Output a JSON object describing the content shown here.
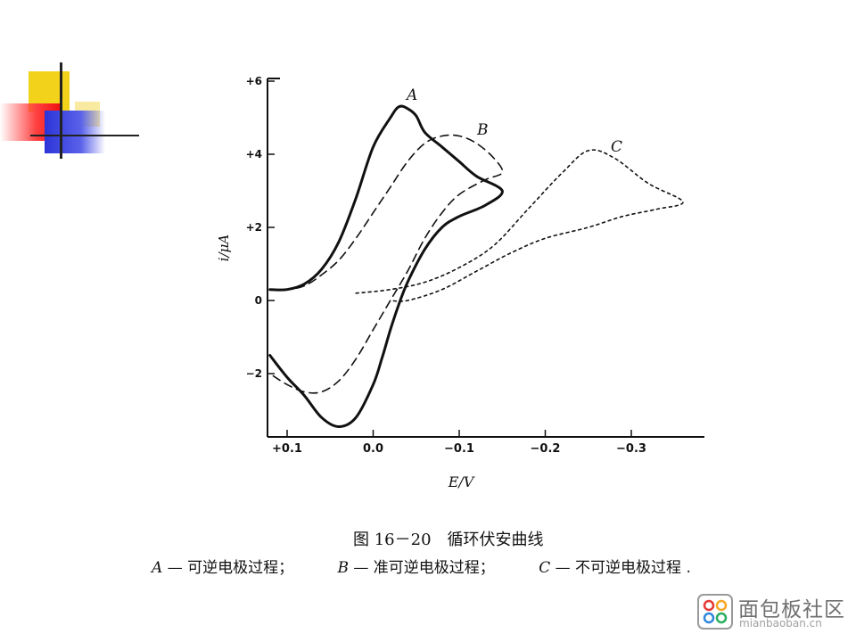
{
  "slide": {
    "decoration": {
      "colors": {
        "yellow": "#f3d21c",
        "red": "#f01010",
        "blue": "#2c34d8",
        "line": "#222222"
      }
    }
  },
  "chart_data": {
    "type": "line",
    "x_axis_reversed": true,
    "xlabel": "E/V",
    "ylabel": "i/μA",
    "xlim": [
      0.12,
      -0.385
    ],
    "ylim": [
      -3.5,
      6.2
    ],
    "x_ticks": [
      {
        "value": 0.1,
        "label": "+0.1"
      },
      {
        "value": 0.0,
        "label": "0.0"
      },
      {
        "value": -0.1,
        "label": "−0.1"
      },
      {
        "value": -0.2,
        "label": "−0.2"
      },
      {
        "value": -0.3,
        "label": "−0.3"
      }
    ],
    "y_ticks": [
      {
        "value": 6,
        "label": "+6"
      },
      {
        "value": 4,
        "label": "+4"
      },
      {
        "value": 2,
        "label": "+2"
      },
      {
        "value": 0,
        "label": "0"
      },
      {
        "value": -2,
        "label": "−2"
      }
    ],
    "grid": false,
    "series": [
      {
        "name": "A",
        "style": "solid",
        "x": [
          0.12,
          0.1,
          0.08,
          0.06,
          0.04,
          0.02,
          0.0,
          -0.02,
          -0.03,
          -0.04,
          -0.05,
          -0.06,
          -0.08,
          -0.1,
          -0.12,
          -0.15,
          -0.13,
          -0.1,
          -0.08,
          -0.06,
          -0.04,
          -0.03,
          -0.02,
          -0.01,
          0.0,
          0.02,
          0.04,
          0.06,
          0.08,
          0.1,
          0.12
        ],
        "y": [
          0.3,
          0.3,
          0.45,
          0.85,
          1.6,
          2.8,
          4.2,
          5.0,
          5.3,
          5.25,
          5.05,
          4.6,
          4.2,
          3.8,
          3.4,
          3.0,
          2.6,
          2.3,
          2.0,
          1.4,
          0.5,
          -0.1,
          -0.8,
          -1.6,
          -2.3,
          -3.2,
          -3.45,
          -3.2,
          -2.6,
          -2.1,
          -1.5
        ]
      },
      {
        "name": "B",
        "style": "dashed",
        "x": [
          0.12,
          0.1,
          0.08,
          0.06,
          0.04,
          0.02,
          0.0,
          -0.02,
          -0.04,
          -0.06,
          -0.08,
          -0.1,
          -0.12,
          -0.14,
          -0.15,
          -0.13,
          -0.1,
          -0.08,
          -0.06,
          -0.04,
          -0.02,
          0.0,
          0.02,
          0.04,
          0.06,
          0.08,
          0.1,
          0.12
        ],
        "y": [
          0.3,
          0.3,
          0.4,
          0.7,
          1.1,
          1.7,
          2.4,
          3.1,
          3.8,
          4.3,
          4.5,
          4.5,
          4.3,
          3.9,
          3.5,
          3.3,
          2.9,
          2.4,
          1.7,
          0.8,
          0.0,
          -0.8,
          -1.6,
          -2.2,
          -2.5,
          -2.5,
          -2.3,
          -2.0
        ]
      },
      {
        "name": "C",
        "style": "dotted",
        "x": [
          0.02,
          -0.02,
          -0.06,
          -0.1,
          -0.14,
          -0.18,
          -0.22,
          -0.25,
          -0.28,
          -0.32,
          -0.36,
          -0.33,
          -0.29,
          -0.25,
          -0.2,
          -0.16,
          -0.12,
          -0.08,
          -0.04,
          -0.02
        ],
        "y": [
          0.2,
          0.3,
          0.5,
          0.9,
          1.5,
          2.5,
          3.5,
          4.1,
          3.9,
          3.2,
          2.7,
          2.5,
          2.3,
          2.0,
          1.7,
          1.3,
          0.8,
          0.3,
          0.0,
          0.0
        ]
      }
    ],
    "annotations": [
      "A",
      "B",
      "C"
    ]
  },
  "caption": {
    "figure": "图 16－20　循环伏安曲线",
    "legend": [
      {
        "key": "A",
        "text": "— 可逆电极过程；"
      },
      {
        "key": "B",
        "text": "— 准可逆电极过程；"
      },
      {
        "key": "C",
        "text": "— 不可逆电极过程 ."
      }
    ]
  },
  "watermark": {
    "name": "面包板社区",
    "domain": "mianbaoban.cn"
  }
}
